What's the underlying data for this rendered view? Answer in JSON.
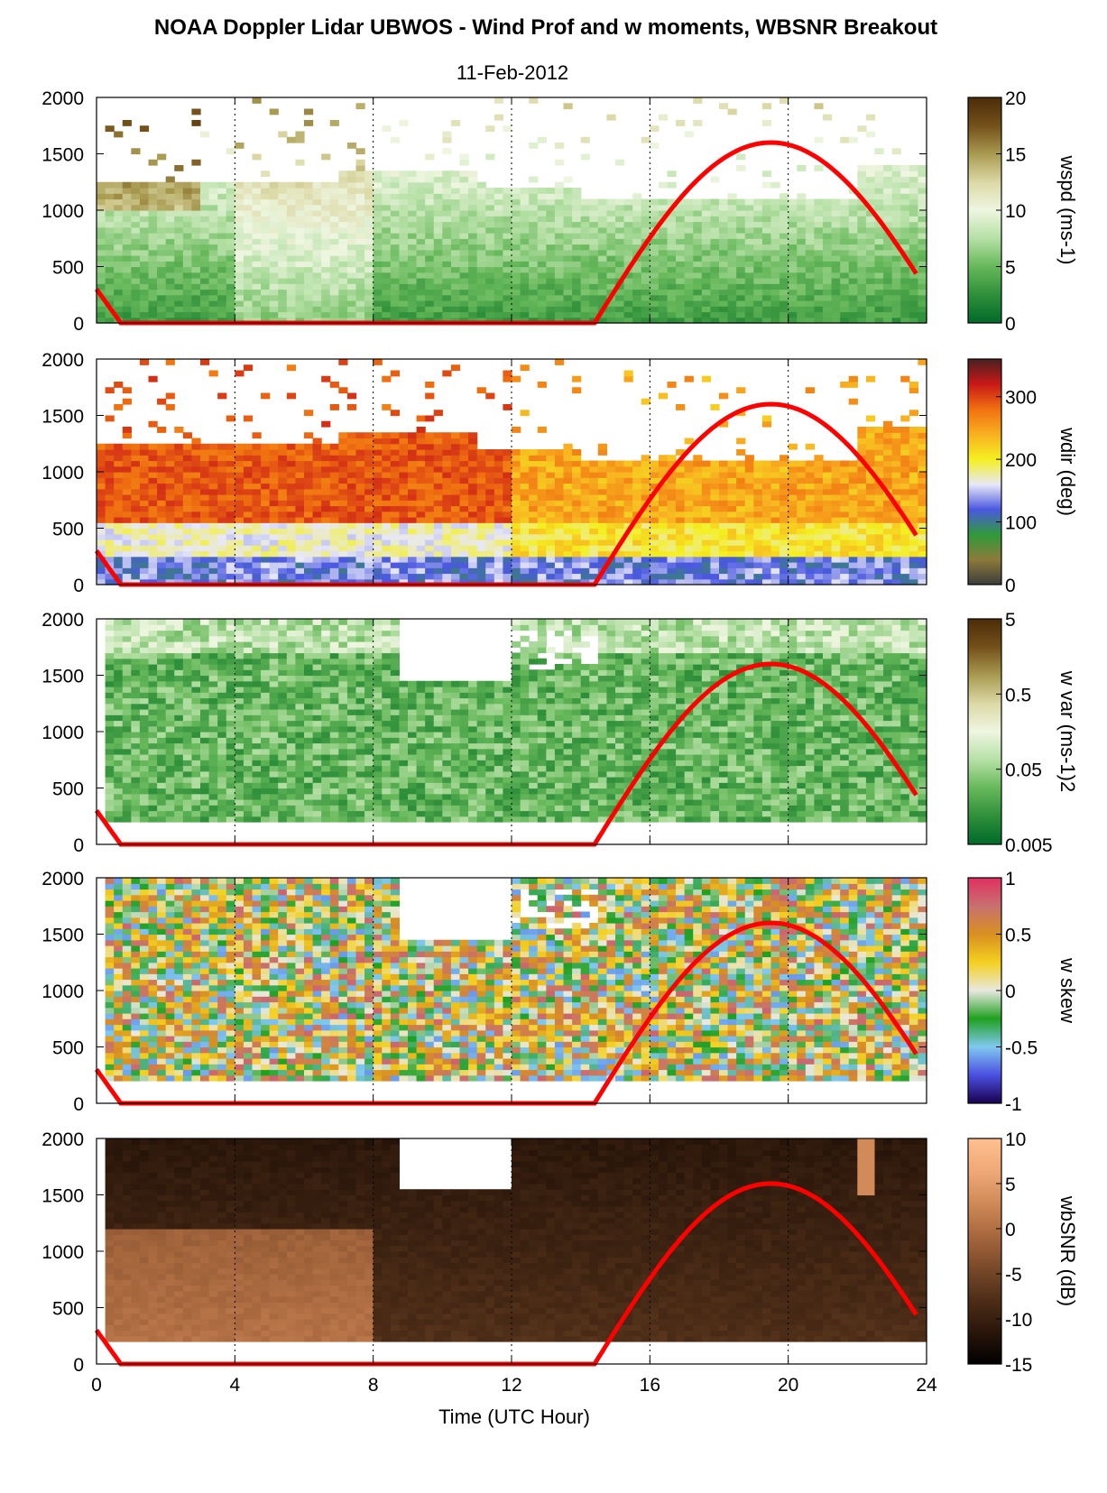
{
  "figure": {
    "title": "NOAA Doppler Lidar UBWOS - Wind Prof and w moments, WBSNR Breakout",
    "subtitle": "11-Feb-2012",
    "xlabel": "Time (UTC Hour)"
  },
  "chart_data": [
    {
      "type": "heatmap",
      "name": "wspd",
      "colorbar_label": "wspd (ms-1)",
      "colorbar_ticks": [
        "20",
        "15",
        "10",
        "5",
        "0"
      ],
      "colorbar_range": [
        0,
        20
      ],
      "colormap": [
        "#006a2a",
        "#2f8f3a",
        "#66b85a",
        "#b6e0a6",
        "#eef6e0",
        "#dcd9a6",
        "#a89a50",
        "#74501a",
        "#4a2c08"
      ],
      "xlim": [
        0,
        24
      ],
      "ylim": [
        0,
        2000
      ],
      "xticks": [
        "0",
        "4",
        "8",
        "12",
        "16",
        "20",
        "24"
      ],
      "yticks": [
        "0",
        "500",
        "1000",
        "1500",
        "2000"
      ],
      "grid": "dotted vertical lines at 4-hour intervals",
      "overlay": {
        "type": "line",
        "color": "#ff0000",
        "x": [
          0,
          0.7,
          14.4,
          16,
          18,
          19.5,
          21,
          22.5,
          23.8
        ],
        "y": [
          300,
          0,
          0,
          800,
          1450,
          1600,
          1480,
          1100,
          500
        ]
      },
      "description_values": {
        "top_of_data_m": [
          1250,
          1300,
          1200,
          1100,
          1100,
          1400
        ]
      }
    },
    {
      "type": "heatmap",
      "name": "wdir",
      "colorbar_label": "wdir (deg)",
      "colorbar_ticks": [
        "300",
        "200",
        "100",
        "0"
      ],
      "colorbar_range": [
        0,
        360
      ],
      "colormap": [
        "#3c3c3c",
        "#8c7a3a",
        "#2f9a3a",
        "#4a58e0",
        "#e8e8f8",
        "#f4f020",
        "#f8b020",
        "#f07010",
        "#c81818",
        "#4a2020"
      ],
      "xlim": [
        0,
        24
      ],
      "ylim": [
        0,
        2000
      ],
      "xticks": [
        "0",
        "4",
        "8",
        "12",
        "16",
        "20",
        "24"
      ],
      "yticks": [
        "0",
        "500",
        "1000",
        "1500",
        "2000"
      ],
      "overlay": {
        "type": "line",
        "color": "#ff0000",
        "x": [
          0,
          0.7,
          14.4,
          16,
          18,
          19.5,
          21,
          22.5,
          23.8
        ],
        "y": [
          300,
          0,
          0,
          800,
          1450,
          1600,
          1480,
          1100,
          500
        ]
      }
    },
    {
      "type": "heatmap",
      "name": "w var",
      "colorbar_label": "w var (ms-1)2",
      "colorbar_ticks": [
        "5",
        "0.5",
        "0.05",
        "0.005"
      ],
      "colorbar_range": [
        0.005,
        5
      ],
      "colorbar_scale": "log",
      "colormap": [
        "#006a2a",
        "#2f8f3a",
        "#66b85a",
        "#b6e0a6",
        "#eef6e0",
        "#dcd9a6",
        "#a89a50",
        "#74501a",
        "#4a2c08"
      ],
      "xlim": [
        0,
        24
      ],
      "ylim": [
        0,
        2000
      ],
      "xticks": [
        "0",
        "4",
        "8",
        "12",
        "16",
        "20",
        "24"
      ],
      "yticks": [
        "0",
        "500",
        "1000",
        "1500",
        "2000"
      ],
      "overlay": {
        "type": "line",
        "color": "#ff0000",
        "x": [
          0,
          0.7,
          14.4,
          16,
          18,
          19.5,
          21,
          22.5,
          23.8
        ],
        "y": [
          300,
          0,
          0,
          800,
          1450,
          1600,
          1480,
          1100,
          500
        ]
      }
    },
    {
      "type": "heatmap",
      "name": "w skew",
      "colorbar_label": "w skew",
      "colorbar_ticks": [
        "1",
        "0.5",
        "0",
        "-0.5",
        "-1"
      ],
      "colorbar_range": [
        -1,
        1
      ],
      "colormap": [
        "#1a0050",
        "#4a50e0",
        "#80c8f0",
        "#20a020",
        "#e8e8e0",
        "#f4d020",
        "#d89020",
        "#c87070",
        "#e03060"
      ],
      "xlim": [
        0,
        24
      ],
      "ylim": [
        0,
        2000
      ],
      "xticks": [
        "0",
        "4",
        "8",
        "12",
        "16",
        "20",
        "24"
      ],
      "yticks": [
        "0",
        "500",
        "1000",
        "1500",
        "2000"
      ],
      "overlay": {
        "type": "line",
        "color": "#ff0000",
        "x": [
          0,
          0.7,
          14.4,
          16,
          18,
          19.5,
          21,
          22.5,
          23.8
        ],
        "y": [
          300,
          0,
          0,
          800,
          1450,
          1600,
          1480,
          1100,
          500
        ]
      }
    },
    {
      "type": "heatmap",
      "name": "wbSNR",
      "colorbar_label": "wbSNR (dB)",
      "colorbar_ticks": [
        "10",
        "5",
        "0",
        "-5",
        "-10",
        "-15"
      ],
      "colorbar_range": [
        -15,
        10
      ],
      "colormap": [
        "#000000",
        "#2a160a",
        "#4e2e18",
        "#7a4a2a",
        "#a8683e",
        "#d08a58",
        "#f0a878",
        "#ffc090"
      ],
      "xlim": [
        0,
        24
      ],
      "ylim": [
        0,
        2000
      ],
      "xticks": [
        "0",
        "4",
        "8",
        "12",
        "16",
        "20",
        "24"
      ],
      "yticks": [
        "0",
        "500",
        "1000",
        "1500",
        "2000"
      ],
      "overlay": {
        "type": "line",
        "color": "#ff0000",
        "x": [
          0,
          0.7,
          14.4,
          16,
          18,
          19.5,
          21,
          22.5,
          23.8
        ],
        "y": [
          300,
          0,
          0,
          800,
          1450,
          1600,
          1480,
          1100,
          500
        ]
      }
    }
  ]
}
